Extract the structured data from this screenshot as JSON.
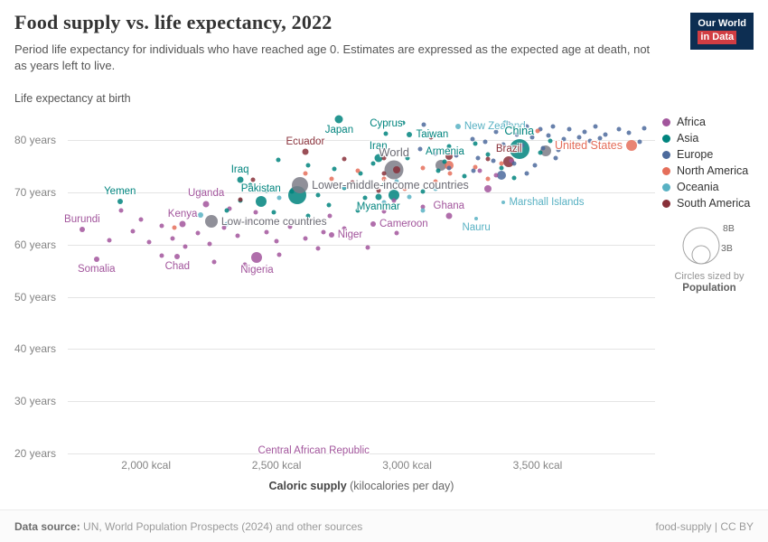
{
  "header": {
    "title": "Food supply vs. life expectancy, 2022",
    "subtitle": "Period life expectancy for individuals who have reached age 0. Estimates are expressed as the expected age at death, not as years left to live.",
    "logo": {
      "line1": "Our World",
      "line2": "in Data",
      "bg_color": "#0d2e52",
      "accent_color": "#d13d43"
    }
  },
  "chart_data": {
    "type": "scatter",
    "title": "Food supply vs. life expectancy, 2022",
    "xlabel": "Caloric supply (kilocalories per day)",
    "xlabel_bold": "Caloric supply",
    "xlabel_rest": " (kilocalories per day)",
    "ylabel": "Life expectancy at birth",
    "xlim": [
      1700,
      3950
    ],
    "ylim": [
      20,
      85.2
    ],
    "grid": "horizontal",
    "legend_position": "right",
    "xticks": [
      {
        "v": 2000,
        "label": "2,000 kcal"
      },
      {
        "v": 2500,
        "label": "2,500 kcal"
      },
      {
        "v": 3000,
        "label": "3,000 kcal"
      },
      {
        "v": 3500,
        "label": "3,500 kcal"
      }
    ],
    "yticks": [
      {
        "v": 20,
        "label": "20 years"
      },
      {
        "v": 30,
        "label": "30 years"
      },
      {
        "v": 40,
        "label": "40 years"
      },
      {
        "v": 50,
        "label": "50 years"
      },
      {
        "v": 60,
        "label": "60 years"
      },
      {
        "v": 70,
        "label": "70 years"
      },
      {
        "v": 80,
        "label": "80 years"
      }
    ],
    "colors": {
      "AF": "#a2559c",
      "AS": "#00847e",
      "EU": "#4c6a9c",
      "NA": "#e56e5a",
      "OC": "#58b1c3",
      "SA": "#883039",
      "GR": "#7d7d87"
    },
    "continent_key": {
      "AF": "Africa",
      "AS": "Asia",
      "EU": "Europe",
      "NA": "North America",
      "OC": "Oceania",
      "SA": "South America",
      "GR": "Aggregate"
    },
    "labeled_points": [
      {
        "name": "Japan",
        "x": 2740,
        "y": 84.0,
        "c": "AS",
        "r": 4.5,
        "anchor": "bottom"
      },
      {
        "name": "Cyprus",
        "x": 2920,
        "y": 81.3,
        "c": "AS",
        "r": 2.5,
        "anchor": "top"
      },
      {
        "name": "Taiwan",
        "x": 3010,
        "y": 81.0,
        "c": "AS",
        "r": 3,
        "anchor": "right"
      },
      {
        "name": "New Zealand",
        "x": 3195,
        "y": 82.6,
        "c": "OC",
        "r": 3,
        "anchor": "right"
      },
      {
        "name": "China",
        "x": 3430,
        "y": 78.3,
        "c": "AS",
        "r": 11,
        "anchor": "top",
        "fs": 12.5
      },
      {
        "name": "United States",
        "x": 3860,
        "y": 79.0,
        "c": "NA",
        "r": 6,
        "anchor": "left",
        "fs": 12.5
      },
      {
        "name": "Ecuador",
        "x": 2610,
        "y": 77.7,
        "c": "SA",
        "r": 3.5,
        "anchor": "top"
      },
      {
        "name": "Iran",
        "x": 2890,
        "y": 76.6,
        "c": "AS",
        "r": 4.5,
        "anchor": "top"
      },
      {
        "name": "World",
        "x": 2950,
        "y": 74.3,
        "c": "GR",
        "r": 10.5,
        "anchor": "top",
        "fs": 13
      },
      {
        "name": "Armenia",
        "x": 3145,
        "y": 75.9,
        "c": "AS",
        "r": 2.5,
        "anchor": "top"
      },
      {
        "name": "Brazil",
        "x": 3390,
        "y": 75.8,
        "c": "SA",
        "r": 6,
        "anchor": "top"
      },
      {
        "name": "Iraq",
        "x": 2360,
        "y": 72.4,
        "c": "AS",
        "r": 3.5,
        "anchor": "top"
      },
      {
        "name": "Yemen",
        "x": 1900,
        "y": 68.2,
        "c": "AS",
        "r": 3,
        "anchor": "top"
      },
      {
        "name": "Uganda",
        "x": 2230,
        "y": 67.8,
        "c": "AF",
        "r": 3.5,
        "anchor": "top"
      },
      {
        "name": "Pakistan",
        "x": 2440,
        "y": 68.3,
        "c": "AS",
        "r": 6,
        "anchor": "top"
      },
      {
        "name": "Lower-middle-income countries",
        "x": 2590,
        "y": 71.4,
        "c": "GR",
        "r": 9,
        "anchor": "right",
        "fs": 12.5
      },
      {
        "name": "Myanmar",
        "x": 2890,
        "y": 69.2,
        "c": "AS",
        "r": 3.5,
        "anchor": "bottom"
      },
      {
        "name": "Marshall Islands",
        "x": 3370,
        "y": 68.1,
        "c": "OC",
        "r": 2,
        "anchor": "right"
      },
      {
        "name": "Ghana",
        "x": 3160,
        "y": 65.4,
        "c": "AF",
        "r": 3.5,
        "anchor": "top"
      },
      {
        "name": "Nauru",
        "x": 3265,
        "y": 64.9,
        "c": "OC",
        "r": 2,
        "anchor": "bottom"
      },
      {
        "name": "Cameroon",
        "x": 2870,
        "y": 63.9,
        "c": "AF",
        "r": 3,
        "anchor": "right"
      },
      {
        "name": "Niger",
        "x": 2710,
        "y": 61.8,
        "c": "AF",
        "r": 3,
        "anchor": "right"
      },
      {
        "name": "Low-income countries",
        "x": 2250,
        "y": 64.4,
        "c": "GR",
        "r": 7,
        "anchor": "right",
        "fs": 12
      },
      {
        "name": "Kenya",
        "x": 2140,
        "y": 63.9,
        "c": "AF",
        "r": 3.5,
        "anchor": "top"
      },
      {
        "name": "Burundi",
        "x": 1755,
        "y": 62.9,
        "c": "AF",
        "r": 3,
        "anchor": "top"
      },
      {
        "name": "Somalia",
        "x": 1810,
        "y": 57.2,
        "c": "AF",
        "r": 3,
        "anchor": "bottom"
      },
      {
        "name": "Chad",
        "x": 2120,
        "y": 57.7,
        "c": "AF",
        "r": 3,
        "anchor": "bottom"
      },
      {
        "name": "Nigeria",
        "x": 2425,
        "y": 57.6,
        "c": "AF",
        "r": 6,
        "anchor": "bottom"
      },
      {
        "name": "Central African Republic",
        "x": 2415,
        "y": 20.5,
        "c": "AF",
        "r": 0,
        "anchor": "right"
      }
    ],
    "points": [
      [
        1950,
        62.5,
        "AF"
      ],
      [
        2010,
        60.5,
        "AF"
      ],
      [
        2060,
        63.5,
        "AF"
      ],
      [
        2100,
        61.2,
        "AF"
      ],
      [
        2150,
        59.6,
        "AF"
      ],
      [
        2200,
        62.2,
        "AF"
      ],
      [
        2245,
        60.1,
        "AF"
      ],
      [
        2300,
        63.2,
        "AF"
      ],
      [
        2350,
        61.6,
        "AF"
      ],
      [
        2400,
        64.6,
        "AF"
      ],
      [
        2460,
        62.4,
        "AF"
      ],
      [
        2500,
        60.6,
        "AF"
      ],
      [
        2550,
        63.4,
        "AF"
      ],
      [
        2610,
        61.2,
        "AF"
      ],
      [
        2660,
        59.2,
        "AF"
      ],
      [
        2705,
        65.4,
        "AF"
      ],
      [
        2760,
        63.1,
        "AF"
      ],
      [
        2800,
        61.6,
        "AF"
      ],
      [
        2850,
        59.4,
        "AF"
      ],
      [
        2910,
        66.4,
        "AF"
      ],
      [
        2960,
        62.2,
        "AF"
      ],
      [
        3010,
        64.1,
        "AF"
      ],
      [
        2060,
        57.9,
        "AF"
      ],
      [
        2260,
        56.6,
        "AF"
      ],
      [
        2510,
        58.1,
        "AF"
      ],
      [
        1905,
        66.5,
        "AF"
      ],
      [
        2320,
        66.8,
        "AF"
      ],
      [
        2420,
        66.2,
        "AF"
      ],
      [
        3310,
        70.6,
        "AF",
        4
      ],
      [
        3400,
        76.1,
        "AF"
      ],
      [
        3280,
        74.2,
        "AF"
      ],
      [
        3340,
        73.3,
        "AF"
      ],
      [
        2950,
        68.4,
        "AF"
      ],
      [
        3060,
        67.3,
        "AF"
      ],
      [
        1980,
        64.8,
        "AF"
      ],
      [
        2380,
        56.2,
        "AF"
      ],
      [
        1860,
        60.9,
        "AF"
      ],
      [
        2680,
        62.3,
        "AF"
      ],
      [
        2505,
        76.2,
        "AS"
      ],
      [
        2620,
        75.1,
        "AS"
      ],
      [
        2720,
        74.4,
        "AS"
      ],
      [
        2820,
        73.6,
        "AS"
      ],
      [
        2870,
        75.6,
        "AS"
      ],
      [
        3000,
        76.6,
        "AS"
      ],
      [
        3120,
        74.2,
        "AS"
      ],
      [
        3220,
        73.1,
        "AS"
      ],
      [
        2400,
        71.4,
        "AS"
      ],
      [
        2460,
        70.4,
        "AS"
      ],
      [
        2560,
        70.1,
        "AS"
      ],
      [
        2660,
        69.4,
        "AS"
      ],
      [
        2760,
        70.9,
        "AS"
      ],
      [
        2910,
        71.4,
        "AS"
      ],
      [
        3060,
        70.2,
        "AS"
      ],
      [
        2360,
        68.4,
        "AS"
      ],
      [
        2310,
        66.6,
        "AS"
      ],
      [
        2490,
        66.1,
        "AS"
      ],
      [
        2620,
        65.4,
        "AS"
      ],
      [
        2810,
        66.6,
        "AS"
      ],
      [
        2960,
        67.4,
        "AS"
      ],
      [
        3310,
        77.2,
        "AS"
      ],
      [
        3510,
        77.6,
        "AS"
      ],
      [
        2210,
        70.1,
        "AS"
      ],
      [
        3160,
        78.8,
        "AS"
      ],
      [
        3260,
        79.4,
        "AS"
      ],
      [
        2950,
        69.5,
        "AS",
        6
      ],
      [
        3360,
        74.6,
        "AS"
      ],
      [
        3410,
        72.8,
        "AS"
      ],
      [
        2700,
        67.6,
        "AS"
      ],
      [
        2840,
        68.9,
        "AS"
      ],
      [
        3550,
        79.8,
        "AS"
      ],
      [
        3650,
        79.2,
        "AS"
      ],
      [
        2580,
        69.5,
        "AS",
        10
      ],
      [
        2985,
        83.3,
        "AS"
      ],
      [
        3390,
        83.1,
        "EU"
      ],
      [
        3460,
        82.6,
        "EU"
      ],
      [
        3510,
        82.1,
        "EU"
      ],
      [
        3560,
        82.6,
        "EU"
      ],
      [
        3620,
        82.1,
        "EU"
      ],
      [
        3680,
        81.6,
        "EU"
      ],
      [
        3720,
        82.6,
        "EU"
      ],
      [
        3760,
        81.1,
        "EU"
      ],
      [
        3810,
        82.1,
        "EU"
      ],
      [
        3850,
        81.4,
        "EU"
      ],
      [
        3340,
        81.6,
        "EU"
      ],
      [
        3420,
        81.1,
        "EU"
      ],
      [
        3480,
        80.6,
        "EU"
      ],
      [
        3540,
        80.9,
        "EU"
      ],
      [
        3600,
        80.1,
        "EU"
      ],
      [
        3660,
        80.6,
        "EU"
      ],
      [
        3700,
        79.9,
        "EU"
      ],
      [
        3740,
        80.4,
        "EU"
      ],
      [
        3250,
        80.1,
        "EU"
      ],
      [
        3300,
        79.6,
        "EU"
      ],
      [
        3370,
        79.1,
        "EU"
      ],
      [
        3440,
        78.9,
        "EU"
      ],
      [
        3520,
        78.4,
        "EU"
      ],
      [
        3580,
        78.1,
        "EU"
      ],
      [
        3640,
        78.6,
        "EU"
      ],
      [
        3110,
        77.4,
        "EU"
      ],
      [
        3190,
        77.1,
        "EU"
      ],
      [
        3270,
        76.6,
        "EU"
      ],
      [
        3330,
        76.1,
        "EU"
      ],
      [
        3410,
        75.6,
        "EU"
      ],
      [
        3490,
        75.1,
        "EU"
      ],
      [
        3160,
        74.6,
        "EU"
      ],
      [
        3255,
        74.1,
        "EU"
      ],
      [
        3570,
        76.6,
        "EU"
      ],
      [
        3460,
        73.6,
        "EU"
      ],
      [
        3890,
        79.6,
        "EU"
      ],
      [
        3910,
        82.3,
        "EU"
      ],
      [
        3050,
        78.2,
        "EU"
      ],
      [
        3065,
        83.0,
        "EU"
      ],
      [
        3360,
        73.2,
        "EU",
        5
      ],
      [
        3060,
        74.6,
        "NA"
      ],
      [
        3165,
        73.6,
        "NA"
      ],
      [
        3260,
        74.9,
        "NA"
      ],
      [
        2910,
        72.6,
        "NA"
      ],
      [
        2810,
        74.1,
        "NA"
      ],
      [
        3360,
        75.6,
        "NA"
      ],
      [
        3110,
        72.1,
        "NA"
      ],
      [
        2710,
        72.6,
        "NA"
      ],
      [
        2610,
        73.6,
        "NA"
      ],
      [
        2990,
        70.6,
        "NA"
      ],
      [
        3310,
        72.6,
        "NA"
      ],
      [
        3500,
        81.8,
        "NA"
      ],
      [
        2110,
        63.2,
        "NA"
      ],
      [
        3160,
        75.1,
        "NA",
        5
      ],
      [
        3410,
        77.9,
        "NA"
      ],
      [
        3380,
        83.2,
        "OC",
        4
      ],
      [
        2210,
        65.6,
        "OC",
        3
      ],
      [
        2310,
        63.9,
        "OC"
      ],
      [
        2760,
        71.1,
        "OC"
      ],
      [
        2910,
        68.1,
        "OC"
      ],
      [
        3010,
        69.1,
        "OC"
      ],
      [
        3060,
        66.6,
        "OC"
      ],
      [
        2960,
        72.1,
        "OC"
      ],
      [
        3110,
        70.6,
        "OC"
      ],
      [
        2510,
        68.9,
        "OC"
      ],
      [
        2910,
        76.6,
        "SA"
      ],
      [
        3310,
        76.4,
        "SA"
      ],
      [
        3090,
        80.6,
        "SA"
      ],
      [
        2760,
        76.4,
        "SA"
      ],
      [
        2410,
        72.4,
        "SA"
      ],
      [
        2360,
        68.6,
        "SA"
      ],
      [
        2910,
        73.6,
        "SA"
      ],
      [
        3210,
        77.6,
        "SA"
      ],
      [
        2890,
        70.4,
        "SA"
      ],
      [
        2790,
        71.9,
        "SA"
      ],
      [
        3160,
        76.9,
        "SA",
        4
      ],
      [
        2960,
        74.3,
        "SA",
        4
      ],
      [
        3130,
        75.2,
        "GR",
        6
      ],
      [
        3530,
        77.9,
        "GR",
        6
      ]
    ]
  },
  "legend": {
    "items": [
      {
        "label": "Africa",
        "color": "#a2559c"
      },
      {
        "label": "Asia",
        "color": "#00847e"
      },
      {
        "label": "Europe",
        "color": "#4c6a9c"
      },
      {
        "label": "North America",
        "color": "#e56e5a"
      },
      {
        "label": "Oceania",
        "color": "#58b1c3"
      },
      {
        "label": "South America",
        "color": "#883039"
      }
    ],
    "size_legend": {
      "big_label": "8B",
      "small_label": "3B",
      "caption": "Circles sized by",
      "caption_bold": "Population"
    }
  },
  "footer": {
    "source_label": "Data source:",
    "source_text": " UN, World Population Prospects (2024) and other sources",
    "right_text": "food-supply | CC BY"
  }
}
